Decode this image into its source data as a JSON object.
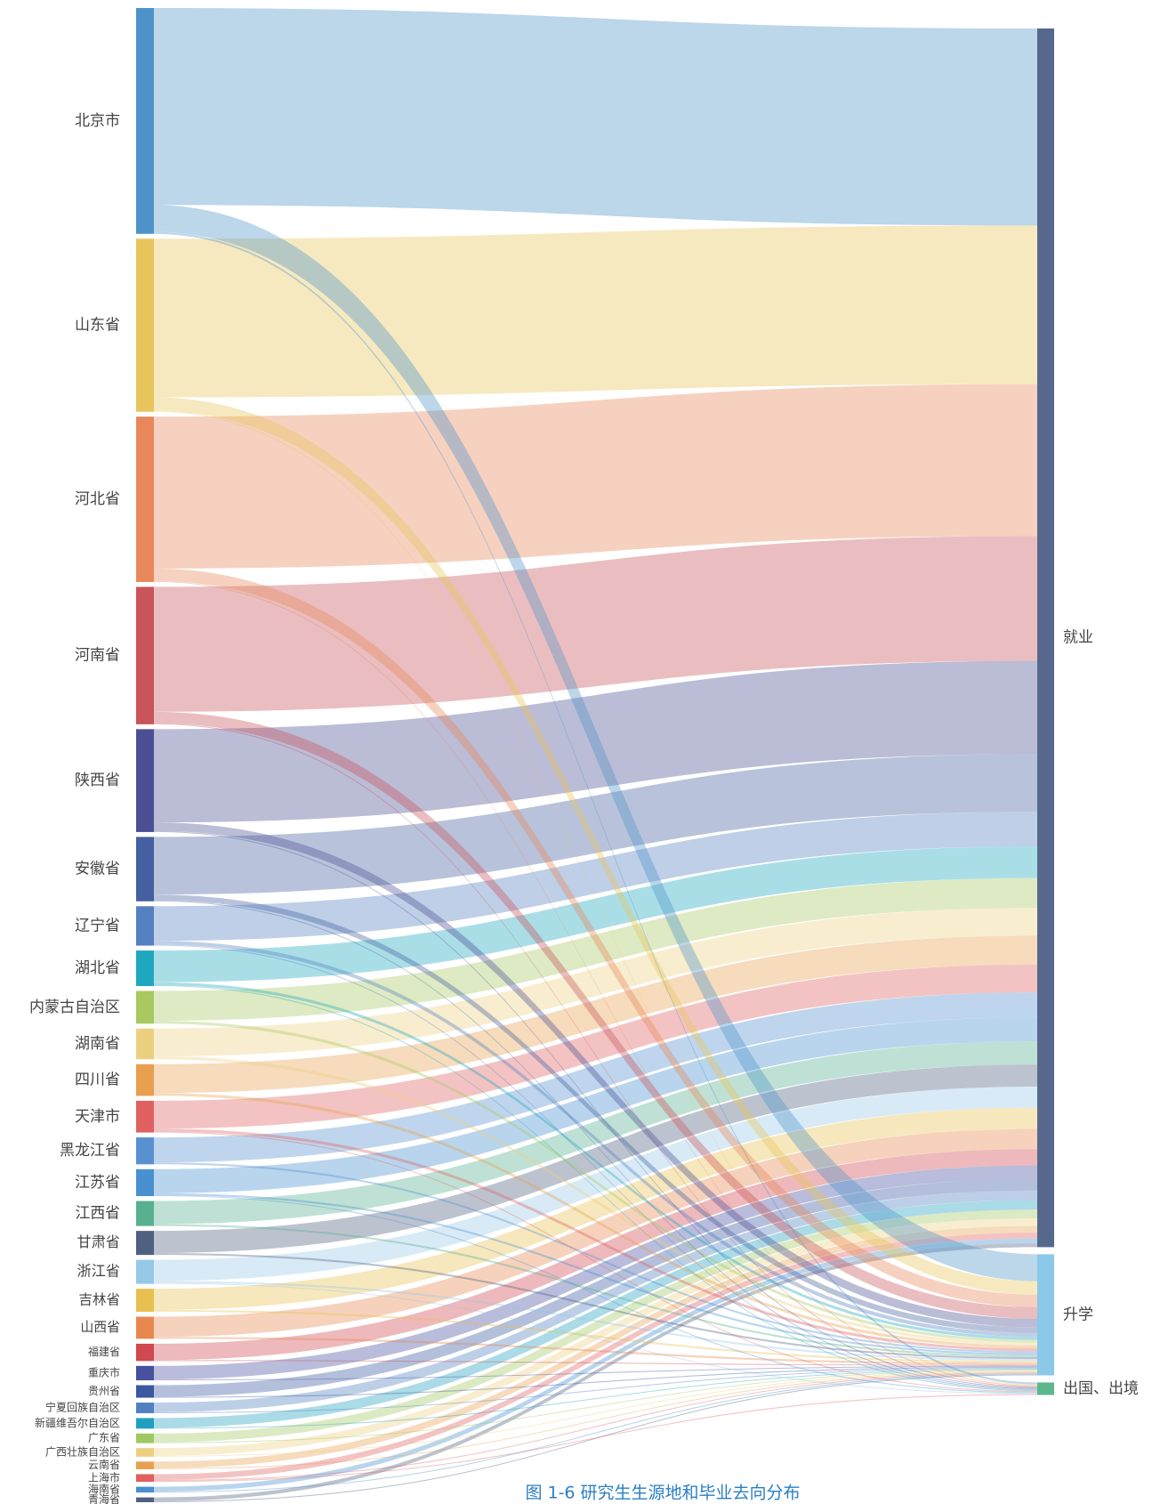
{
  "chart_data": {
    "type": "sankey",
    "title": "图 1-6 研究生生源地和毕业去向分布",
    "categories": [
      "北京市",
      "山东省",
      "河北省",
      "河南省",
      "陕西省",
      "安徽省",
      "辽宁省",
      "湖北省",
      "内蒙古自治区",
      "湖南省",
      "四川省",
      "天津市",
      "黑龙江省",
      "江苏省",
      "江西省",
      "甘肃省",
      "浙江省",
      "吉林省",
      "山西省",
      "福建省",
      "重庆市",
      "贵州省",
      "宁夏回族自治区",
      "新疆维吾尔自治区",
      "广东省",
      "广西壮族自治区",
      "云南省",
      "上海市",
      "海南省",
      "青海省"
    ],
    "colors": [
      "#4e93c8",
      "#e8c55a",
      "#e8875a",
      "#c9545a",
      "#4b4f93",
      "#4560a0",
      "#5580c0",
      "#20a8c0",
      "#a8c860",
      "#ecd080",
      "#e8a050",
      "#e06060",
      "#5890d0",
      "#4890d0",
      "#58b090",
      "#506080",
      "#98c8e8",
      "#e8c050",
      "#e88850",
      "#d04850",
      "#4850a0",
      "#3858a0",
      "#5080c0",
      "#20a0c0",
      "#a0c860",
      "#ecd080",
      "#e8a050",
      "#e06060",
      "#4890d0",
      "#506080"
    ],
    "series": [
      {
        "name": "就业",
        "color": "#56698c",
        "values": [
          205,
          165,
          158,
          130,
          97,
          60,
          36,
          33,
          31,
          29,
          30,
          29,
          26,
          25,
          24,
          23,
          22,
          22,
          21,
          17,
          14,
          12,
          10,
          10,
          9,
          8,
          7,
          6,
          5,
          4
        ]
      },
      {
        "name": "升学",
        "color": "#8cc8e8",
        "values": [
          28,
          14,
          13,
          12,
          9,
          6,
          4,
          3,
          3,
          3,
          3,
          3,
          2,
          2,
          2,
          2,
          2,
          2,
          2,
          1,
          1,
          1,
          1,
          1,
          1,
          1,
          1,
          1,
          1,
          1
        ]
      },
      {
        "name": "出国、出境",
        "color": "#5cb88c",
        "values": [
          2,
          1,
          1,
          1,
          1,
          1,
          1,
          1,
          0,
          0,
          0,
          1,
          0,
          1,
          0,
          0,
          1,
          0,
          0,
          0,
          0,
          0,
          0,
          0,
          0,
          0,
          0,
          1,
          0,
          0
        ]
      }
    ]
  }
}
